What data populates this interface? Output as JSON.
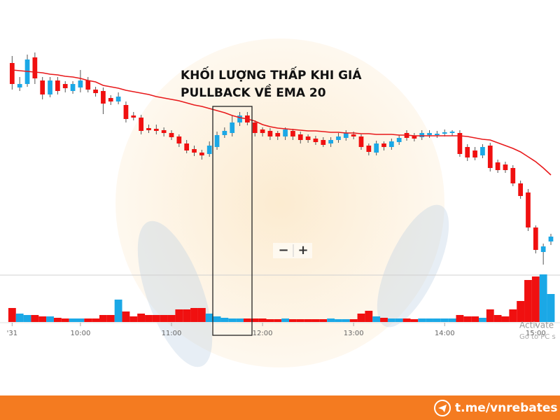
{
  "chart_data": {
    "type": "candlestick",
    "annotation": [
      "KHỐI LƯỢNG THẤP KHI GIÁ",
      "PULLBACK VỀ EMA 20"
    ],
    "x": [
      15,
      20,
      25,
      30,
      35,
      40,
      45,
      50,
      55,
      60,
      65,
      70,
      75,
      80,
      85,
      90,
      95,
      100,
      105,
      110,
      115,
      120,
      125,
      130,
      135,
      140,
      145,
      150,
      155,
      160,
      165,
      170,
      175,
      180,
      185,
      190,
      195,
      200,
      205,
      210,
      215,
      220,
      225,
      230,
      235,
      240,
      245,
      250,
      255,
      260,
      265,
      270,
      275,
      280,
      285,
      290,
      295,
      300,
      305,
      310,
      315,
      320,
      325,
      330,
      335,
      340,
      345,
      350,
      355,
      360,
      365,
      370
    ],
    "xlim": [
      7,
      376
    ],
    "xticks": [
      {
        "value": 15,
        "label": "'31"
      },
      {
        "value": 60,
        "label": "10:00"
      },
      {
        "value": 120,
        "label": "11:00"
      },
      {
        "value": 180,
        "label": "12:00"
      },
      {
        "value": 240,
        "label": "13:00"
      },
      {
        "value": 300,
        "label": "14:00"
      },
      {
        "value": 360,
        "label": "15:00"
      }
    ],
    "ylim": [
      0,
      340
    ],
    "open": [
      310,
      275,
      280,
      318,
      285,
      265,
      285,
      280,
      270,
      275,
      285,
      272,
      270,
      260,
      255,
      250,
      235,
      232,
      217,
      216,
      214,
      210,
      205,
      195,
      187,
      182,
      180,
      190,
      207,
      210,
      225,
      235,
      225,
      215,
      213,
      210,
      205,
      213,
      208,
      205,
      202,
      200,
      195,
      200,
      203,
      208,
      205,
      192,
      182,
      195,
      190,
      197,
      210,
      206,
      204,
      207,
      207,
      209,
      210,
      210,
      190,
      185,
      178,
      192,
      168,
      165,
      160,
      138,
      125,
      75,
      40,
      55
    ],
    "high": [
      320,
      290,
      322,
      325,
      290,
      290,
      290,
      284,
      284,
      300,
      290,
      276,
      275,
      264,
      268,
      255,
      240,
      236,
      222,
      222,
      218,
      214,
      208,
      200,
      192,
      186,
      198,
      212,
      218,
      235,
      240,
      240,
      228,
      218,
      217,
      213,
      218,
      216,
      212,
      208,
      206,
      204,
      204,
      210,
      214,
      212,
      208,
      195,
      199,
      198,
      202,
      207,
      214,
      210,
      214,
      214,
      213,
      215,
      214,
      214,
      194,
      190,
      194,
      196,
      172,
      169,
      164,
      142,
      130,
      78,
      52,
      66
    ],
    "low": [
      272,
      270,
      276,
      280,
      258,
      261,
      265,
      268,
      266,
      268,
      268,
      262,
      237,
      250,
      251,
      225,
      228,
      208,
      210,
      208,
      205,
      200,
      190,
      181,
      177,
      172,
      176,
      186,
      203,
      205,
      220,
      221,
      205,
      205,
      200,
      200,
      200,
      200,
      195,
      196,
      193,
      190,
      190,
      196,
      199,
      201,
      186,
      178,
      178,
      185,
      186,
      193,
      199,
      198,
      200,
      203,
      203,
      205,
      206,
      176,
      170,
      171,
      174,
      155,
      153,
      153,
      134,
      116,
      70,
      38,
      22,
      50
    ],
    "close": [
      280,
      280,
      315,
      288,
      265,
      285,
      270,
      274,
      280,
      285,
      272,
      267,
      252,
      255,
      262,
      230,
      232,
      213,
      214,
      213,
      210,
      204,
      195,
      185,
      182,
      178,
      192,
      207,
      213,
      225,
      235,
      225,
      210,
      210,
      205,
      205,
      215,
      205,
      200,
      200,
      197,
      193,
      200,
      205,
      210,
      205,
      190,
      183,
      195,
      190,
      198,
      203,
      203,
      202,
      210,
      210,
      209,
      211,
      212,
      180,
      175,
      175,
      190,
      160,
      157,
      157,
      138,
      120,
      75,
      43,
      48,
      62
    ],
    "up_color": "#1ba8e6",
    "down_color": "#f01010",
    "ema": {
      "color": "#e8191b",
      "values": [
        300,
        299,
        298,
        297,
        296,
        294,
        293,
        291,
        290,
        288,
        285,
        283,
        278,
        276,
        274,
        271,
        269,
        267,
        265,
        262,
        260,
        258,
        256,
        253,
        250,
        248,
        245,
        242,
        239,
        235,
        232,
        230,
        227,
        222,
        219,
        217,
        216,
        215,
        214,
        213,
        213,
        212,
        211,
        211,
        210,
        210,
        209,
        209,
        208,
        208,
        208,
        207,
        207,
        206,
        206,
        206,
        206,
        206,
        206,
        206,
        205,
        203,
        201,
        200,
        196,
        192,
        188,
        183,
        176,
        169,
        160,
        150
      ]
    },
    "volume": {
      "ylim": [
        0,
        70
      ],
      "values": [
        20,
        12,
        10,
        10,
        8,
        8,
        6,
        5,
        5,
        5,
        5,
        5,
        10,
        10,
        32,
        15,
        8,
        12,
        10,
        10,
        10,
        10,
        18,
        18,
        20,
        20,
        12,
        8,
        6,
        5,
        5,
        5,
        5,
        5,
        4,
        4,
        5,
        4,
        4,
        4,
        4,
        4,
        5,
        4,
        4,
        4,
        12,
        16,
        8,
        6,
        5,
        5,
        5,
        4,
        5,
        5,
        5,
        5,
        5,
        10,
        8,
        8,
        6,
        18,
        10,
        8,
        18,
        30,
        60,
        65,
        68,
        40
      ]
    }
  },
  "zoom_buttons": [
    "−",
    "+"
  ],
  "watermark": [
    "Activate",
    "Go to PC s"
  ],
  "footer": "t.me/vnrebates"
}
